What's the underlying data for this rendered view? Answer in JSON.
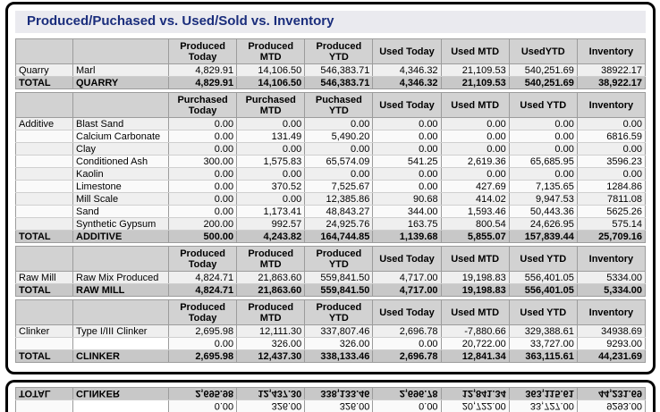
{
  "window": {
    "title": "Produced/Puchased vs. Used/Sold vs. Inventory"
  },
  "colors": {
    "title_text": "#1a2d7c",
    "title_bar_bg": "#eaeaef",
    "header_cell_bg": "#d2d2d2",
    "total_row_bg": "#c8c8c8",
    "row_stripe_odd": "#efefef",
    "row_stripe_even": "#fafafa",
    "cell_border": "#9c9c9c",
    "window_border": "#000000"
  },
  "sections": [
    {
      "headers": [
        "Produced Today",
        "Produced MTD",
        "Produced YTD",
        "Used Today",
        "Used MTD",
        "UsedYTD",
        "Inventory"
      ],
      "rows": [
        {
          "category": "Quarry",
          "item": "Marl",
          "values": [
            "4,829.91",
            "14,106.50",
            "546,383.71",
            "4,346.32",
            "21,109.53",
            "540,251.69",
            "38922.17"
          ]
        }
      ],
      "total": {
        "label": "TOTAL",
        "item": "QUARRY",
        "values": [
          "4,829.91",
          "14,106.50",
          "546,383.71",
          "4,346.32",
          "21,109.53",
          "540,251.69",
          "38,922.17"
        ]
      }
    },
    {
      "headers": [
        "Purchased Today",
        "Purchased MTD",
        "Puchased YTD",
        "Used Today",
        "Used MTD",
        "Used YTD",
        "Inventory"
      ],
      "rows": [
        {
          "category": "Additive",
          "item": "Blast Sand",
          "values": [
            "0.00",
            "0.00",
            "0.00",
            "0.00",
            "0.00",
            "0.00",
            "0.00"
          ]
        },
        {
          "category": "",
          "item": "Calcium Carbonate",
          "values": [
            "0.00",
            "131.49",
            "5,490.20",
            "0.00",
            "0.00",
            "0.00",
            "6816.59"
          ]
        },
        {
          "category": "",
          "item": "Clay",
          "values": [
            "0.00",
            "0.00",
            "0.00",
            "0.00",
            "0.00",
            "0.00",
            "0.00"
          ]
        },
        {
          "category": "",
          "item": "Conditioned Ash",
          "values": [
            "300.00",
            "1,575.83",
            "65,574.09",
            "541.25",
            "2,619.36",
            "65,685.95",
            "3596.23"
          ]
        },
        {
          "category": "",
          "item": "Kaolin",
          "values": [
            "0.00",
            "0.00",
            "0.00",
            "0.00",
            "0.00",
            "0.00",
            "0.00"
          ]
        },
        {
          "category": "",
          "item": "Limestone",
          "values": [
            "0.00",
            "370.52",
            "7,525.67",
            "0.00",
            "427.69",
            "7,135.65",
            "1284.86"
          ]
        },
        {
          "category": "",
          "item": "Mill Scale",
          "values": [
            "0.00",
            "0.00",
            "12,385.86",
            "90.68",
            "414.02",
            "9,947.53",
            "7811.08"
          ]
        },
        {
          "category": "",
          "item": "Sand",
          "values": [
            "0.00",
            "1,173.41",
            "48,843.27",
            "344.00",
            "1,593.46",
            "50,443.36",
            "5625.26"
          ]
        },
        {
          "category": "",
          "item": "Synthetic Gypsum",
          "values": [
            "200.00",
            "992.57",
            "24,925.76",
            "163.75",
            "800.54",
            "24,626.95",
            "575.14"
          ]
        }
      ],
      "total": {
        "label": "TOTAL",
        "item": "ADDITIVE",
        "values": [
          "500.00",
          "4,243.82",
          "164,744.85",
          "1,139.68",
          "5,855.07",
          "157,839.44",
          "25,709.16"
        ]
      }
    },
    {
      "headers": [
        "Produced Today",
        "Produced MTD",
        "Produced YTD",
        "Used Today",
        "Used MTD",
        "Used YTD",
        "Inventory"
      ],
      "rows": [
        {
          "category": "Raw Mill",
          "item": "Raw Mix Produced",
          "values": [
            "4,824.71",
            "21,863.60",
            "559,841.50",
            "4,717.00",
            "19,198.83",
            "556,401.05",
            "5334.00"
          ]
        }
      ],
      "total": {
        "label": "TOTAL",
        "item": "RAW MILL",
        "values": [
          "4,824.71",
          "21,863.60",
          "559,841.50",
          "4,717.00",
          "19,198.83",
          "556,401.05",
          "5,334.00"
        ]
      }
    },
    {
      "headers": [
        "Produced Today",
        "Produced MTD",
        "Produced YTD",
        "Used Today",
        "Used MTD",
        "Used YTD",
        "Inventory"
      ],
      "rows": [
        {
          "category": "Clinker",
          "item": "Type I/III Clinker",
          "values": [
            "2,695.98",
            "12,111.30",
            "337,807.46",
            "2,696.78",
            "-7,880.66",
            "329,388.61",
            "34938.69"
          ]
        },
        {
          "category": "",
          "item": "",
          "redacted": true,
          "values": [
            "0.00",
            "326.00",
            "326.00",
            "0.00",
            "20,722.00",
            "33,727.00",
            "9293.00"
          ]
        }
      ],
      "total": {
        "label": "TOTAL",
        "item": "CLINKER",
        "values": [
          "2,695.98",
          "12,437.30",
          "338,133.46",
          "2,696.78",
          "12,841.34",
          "363,115.61",
          "44,231.69"
        ]
      }
    }
  ]
}
